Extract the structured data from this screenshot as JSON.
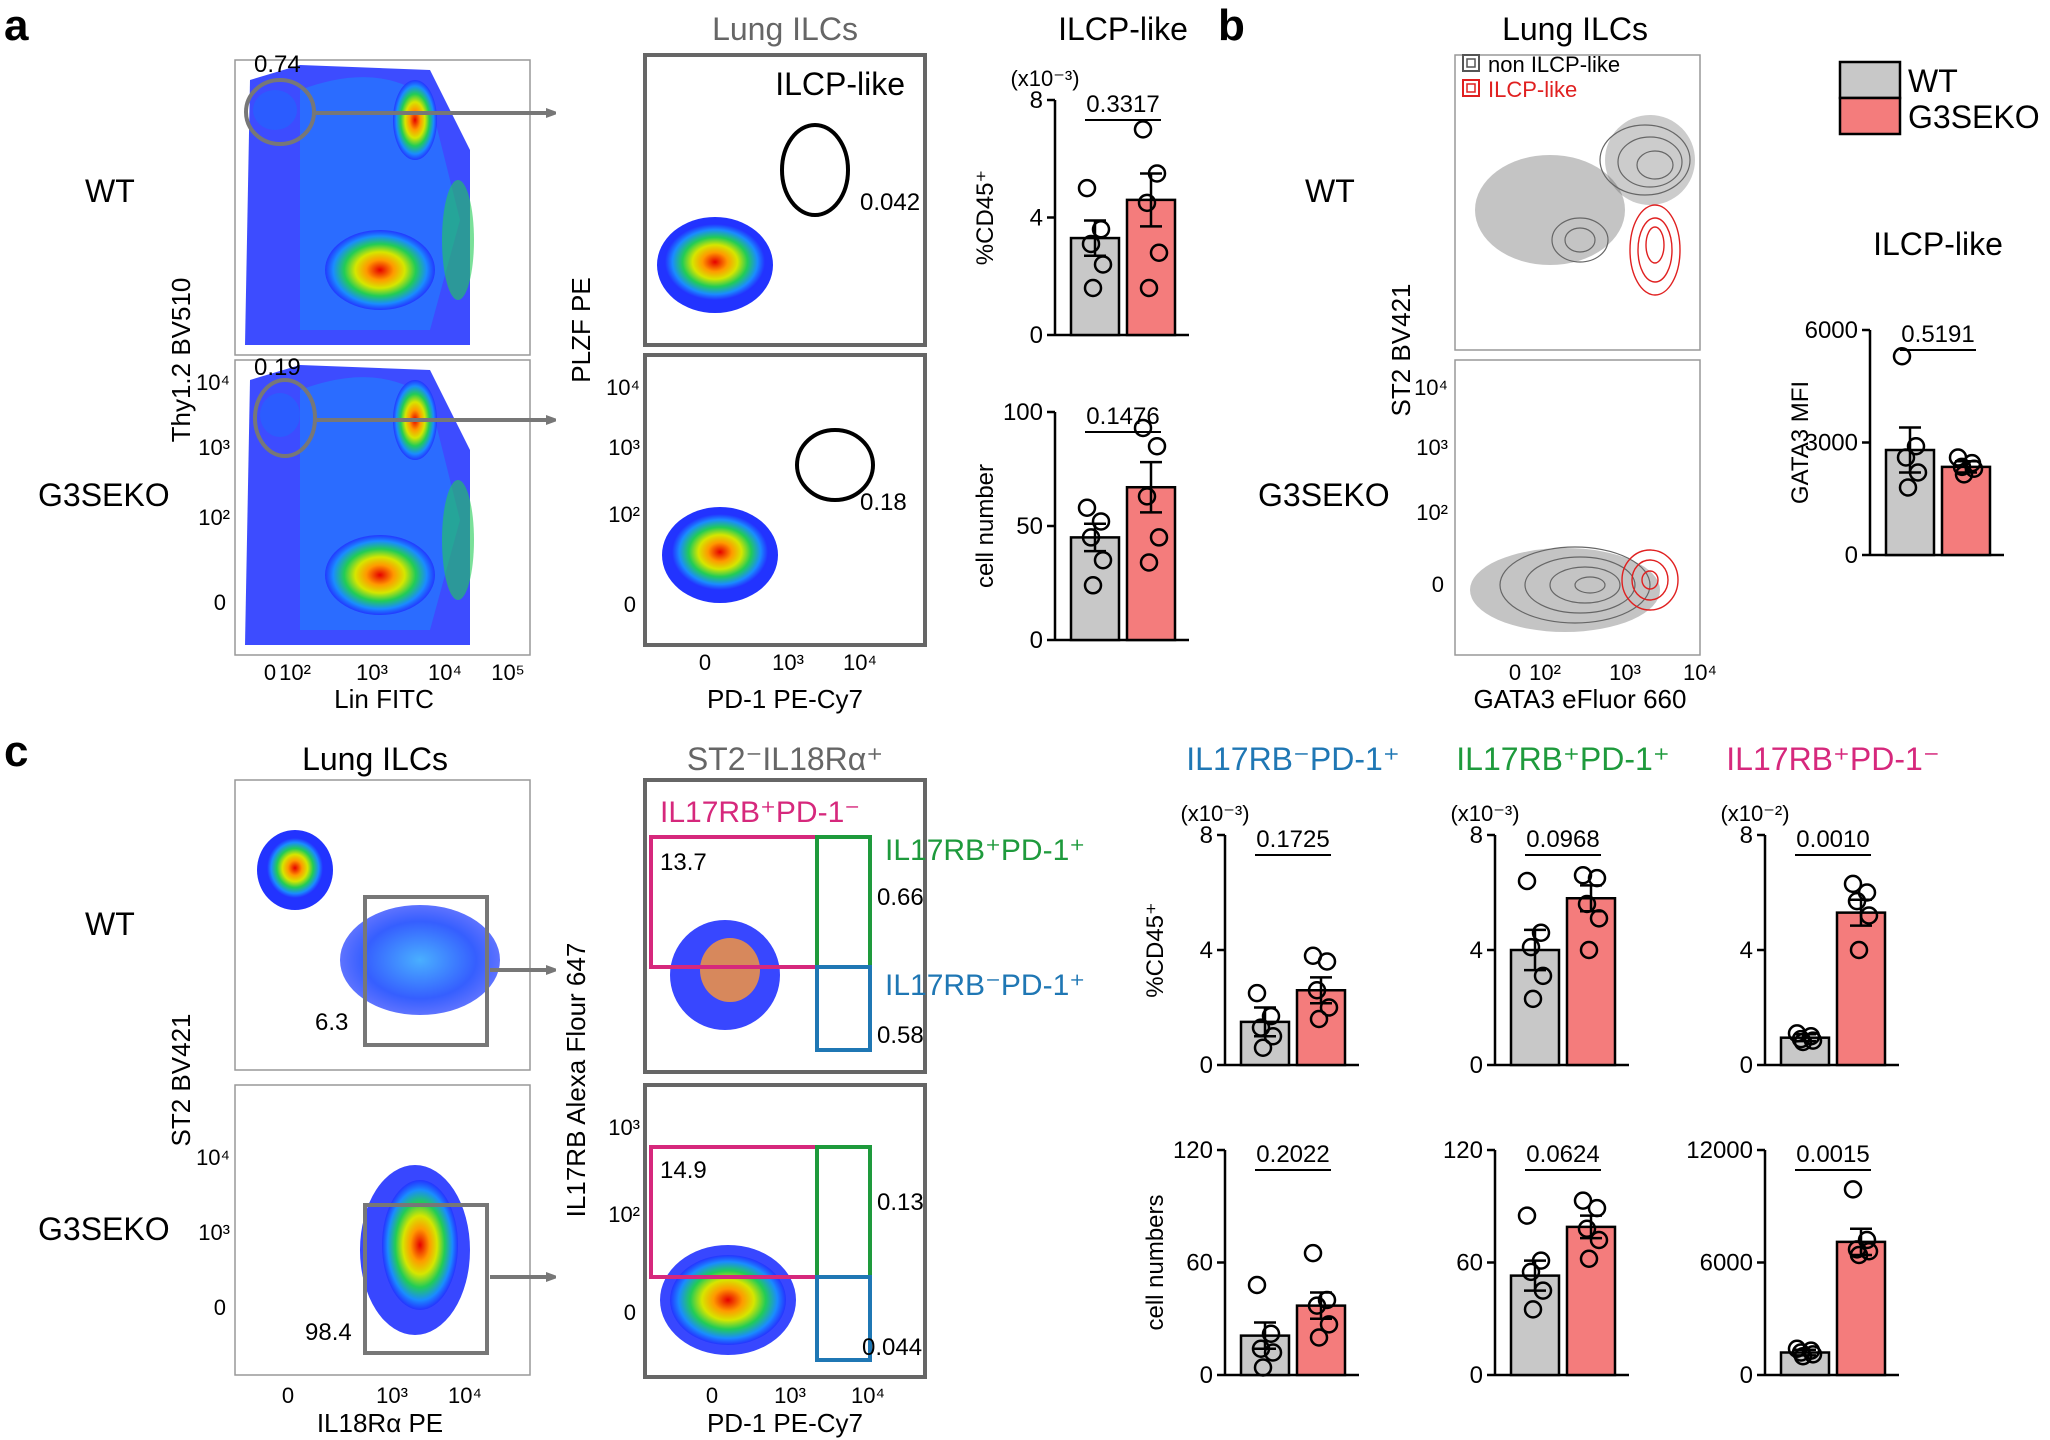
{
  "panel_letters": [
    "a",
    "b",
    "c"
  ],
  "genotype_labels": {
    "wt": "WT",
    "ko": "G3SEKO"
  },
  "legend": {
    "entries": [
      {
        "label": "WT",
        "color": "#c8c8c8"
      },
      {
        "label": "G3SEKO",
        "color": "#f47c7c"
      }
    ]
  },
  "flow_plots": {
    "a_thy_lin": {
      "wt": {
        "gate_value": "0.74"
      },
      "ko": {
        "gate_value": "0.19"
      },
      "xlabel": "Lin FITC",
      "ylabel": "Thy1.2 BV510",
      "xticks": [
        "0",
        "10²",
        "10³",
        "10⁴",
        "10⁵"
      ],
      "yticks": [
        "10⁴",
        "10³",
        "10²",
        "0"
      ]
    },
    "a_plzf_pd1": {
      "title": "Lung ILCs",
      "gate_name": "ILCP-like",
      "wt": {
        "gate_value": "0.042"
      },
      "ko": {
        "gate_value": "0.18"
      },
      "xlabel": "PD-1 PE-Cy7",
      "ylabel": "PLZF PE",
      "xticks": [
        "0",
        "10³",
        "10⁴"
      ],
      "yticks": [
        "10⁴",
        "10³",
        "10²",
        "0"
      ]
    },
    "b_contour": {
      "title": "Lung ILCs",
      "legend": [
        "non ILCP-like",
        "ILCP-like"
      ],
      "xlabel": "GATA3 eFluor 660",
      "ylabel": "ST2 BV421",
      "xticks": [
        "0",
        "10²",
        "10³",
        "10⁴"
      ],
      "yticks": [
        "10⁴",
        "10³",
        "10²",
        "0"
      ]
    },
    "c_st2_il18": {
      "title": "Lung ILCs",
      "wt": {
        "gate_value": "6.3"
      },
      "ko": {
        "gate_value": "98.4"
      },
      "xlabel": "IL18Rα PE",
      "ylabel": "ST2 BV421",
      "xticks": [
        "0",
        "10³",
        "10⁴"
      ],
      "yticks": [
        "10⁴",
        "10³",
        "0"
      ]
    },
    "c_il17rb_pd1": {
      "title": "ST2⁻IL18Rα⁺",
      "gates": [
        {
          "name": "IL17RB⁺PD-1⁻",
          "color": "#d6287c"
        },
        {
          "name": "IL17RB⁺PD-1⁺",
          "color": "#1e9a3c"
        },
        {
          "name": "IL17RB⁻PD-1⁺",
          "color": "#1f77b4"
        }
      ],
      "wt": {
        "values": [
          "13.7",
          "0.66",
          "0.58"
        ]
      },
      "ko": {
        "values": [
          "14.9",
          "0.13",
          "0.044"
        ]
      },
      "xlabel": "PD-1 PE-Cy7",
      "ylabel": "IL17RB Alexa Flour 647",
      "xticks": [
        "0",
        "10³",
        "10⁴"
      ],
      "yticks": [
        "10³",
        "10²",
        "0"
      ]
    }
  },
  "chart_data": [
    {
      "id": "a_ilcp_pct",
      "type": "bar",
      "title": "ILCP-like",
      "ylabel": "%CD45⁺",
      "scale_note": "(x10⁻³)",
      "ylim": [
        0,
        8
      ],
      "yticks": [
        "0",
        "4",
        "8"
      ],
      "pvalue": "0.3317",
      "categories": [
        "WT",
        "G3SEKO"
      ],
      "values": [
        3.3,
        4.6
      ],
      "errors": [
        0.6,
        0.9
      ],
      "points": [
        [
          5.0,
          3.6,
          3.1,
          2.4,
          1.6
        ],
        [
          7.0,
          5.5,
          4.5,
          2.8,
          1.6
        ]
      ]
    },
    {
      "id": "a_ilcp_num",
      "type": "bar",
      "title": "",
      "ylabel": "cell number",
      "scale_note": "",
      "ylim": [
        0,
        100
      ],
      "yticks": [
        "0",
        "50",
        "100"
      ],
      "pvalue": "0.1476",
      "categories": [
        "WT",
        "G3SEKO"
      ],
      "values": [
        45,
        67
      ],
      "errors": [
        6,
        11
      ],
      "points": [
        [
          58,
          52,
          45,
          35,
          24
        ],
        [
          93,
          85,
          63,
          45,
          34
        ]
      ]
    },
    {
      "id": "b_gata3",
      "type": "bar",
      "title": "ILCP-like",
      "ylabel": "GATA3 MFI",
      "scale_note": "",
      "ylim": [
        0,
        6000
      ],
      "yticks": [
        "0",
        "3000",
        "6000"
      ],
      "pvalue": "0.5191",
      "categories": [
        "WT",
        "G3SEKO"
      ],
      "values": [
        2800,
        2350
      ],
      "errors": [
        600,
        150
      ],
      "points": [
        [
          5300,
          2900,
          2600,
          2200,
          1800
        ],
        [
          2600,
          2450,
          2350,
          2300,
          2150
        ]
      ]
    },
    {
      "id": "c1_pct",
      "type": "bar",
      "title": "IL17RB⁻PD-1⁺",
      "title_color": "#1f77b4",
      "ylabel": "%CD45⁺",
      "scale_note": "(x10⁻³)",
      "ylim": [
        0,
        8
      ],
      "yticks": [
        "0",
        "4",
        "8"
      ],
      "pvalue": "0.1725",
      "categories": [
        "WT",
        "G3SEKO"
      ],
      "values": [
        1.5,
        2.6
      ],
      "errors": [
        0.5,
        0.45
      ],
      "points": [
        [
          2.5,
          1.7,
          1.3,
          1.0,
          0.6
        ],
        [
          3.8,
          3.6,
          2.6,
          2.0,
          1.6
        ]
      ]
    },
    {
      "id": "c2_pct",
      "type": "bar",
      "title": "IL17RB⁺PD-1⁺",
      "title_color": "#1e9a3c",
      "ylabel": "",
      "scale_note": "(x10⁻³)",
      "ylim": [
        0,
        8
      ],
      "yticks": [
        "0",
        "4",
        "8"
      ],
      "pvalue": "0.0968",
      "categories": [
        "WT",
        "G3SEKO"
      ],
      "values": [
        4.0,
        5.8
      ],
      "errors": [
        0.7,
        0.45
      ],
      "points": [
        [
          6.4,
          4.6,
          4.1,
          3.1,
          2.3
        ],
        [
          6.6,
          6.5,
          5.6,
          5.1,
          4.0
        ]
      ]
    },
    {
      "id": "c3_pct",
      "type": "bar",
      "title": "IL17RB⁺PD-1⁻",
      "title_color": "#d6287c",
      "ylabel": "",
      "scale_note": "(x10⁻²)",
      "ylim": [
        0,
        8
      ],
      "yticks": [
        "0",
        "4",
        "8"
      ],
      "pvalue": "0.0010",
      "categories": [
        "WT",
        "G3SEKO"
      ],
      "values": [
        0.95,
        5.3
      ],
      "errors": [
        0.12,
        0.45
      ],
      "points": [
        [
          1.1,
          1.0,
          0.9,
          0.85,
          0.8
        ],
        [
          6.3,
          6.0,
          5.7,
          5.2,
          4.0
        ]
      ]
    },
    {
      "id": "c1_num",
      "type": "bar",
      "title": "",
      "ylabel": "cell numbers",
      "scale_note": "",
      "ylim": [
        0,
        120
      ],
      "yticks": [
        "0",
        "60",
        "120"
      ],
      "pvalue": "0.2022",
      "categories": [
        "WT",
        "G3SEKO"
      ],
      "values": [
        21,
        37
      ],
      "errors": [
        7,
        7
      ],
      "points": [
        [
          48,
          22,
          14,
          12,
          4
        ],
        [
          65,
          40,
          37,
          27,
          20
        ]
      ]
    },
    {
      "id": "c2_num",
      "type": "bar",
      "title": "",
      "ylabel": "",
      "scale_note": "",
      "ylim": [
        0,
        120
      ],
      "yticks": [
        "0",
        "60",
        "120"
      ],
      "pvalue": "0.0624",
      "categories": [
        "WT",
        "G3SEKO"
      ],
      "values": [
        53,
        79
      ],
      "errors": [
        8,
        6
      ],
      "points": [
        [
          85,
          61,
          55,
          45,
          35
        ],
        [
          93,
          89,
          78,
          72,
          62
        ]
      ]
    },
    {
      "id": "c3_num",
      "type": "bar",
      "title": "",
      "ylabel": "",
      "scale_note": "",
      "ylim": [
        0,
        12000
      ],
      "yticks": [
        "0",
        "6000",
        "12000"
      ],
      "pvalue": "0.0015",
      "categories": [
        "WT",
        "G3SEKO"
      ],
      "values": [
        1200,
        7100
      ],
      "errors": [
        150,
        700
      ],
      "points": [
        [
          1400,
          1300,
          1200,
          1100,
          1000
        ],
        [
          9900,
          7200,
          6700,
          6600,
          6400
        ]
      ]
    }
  ]
}
